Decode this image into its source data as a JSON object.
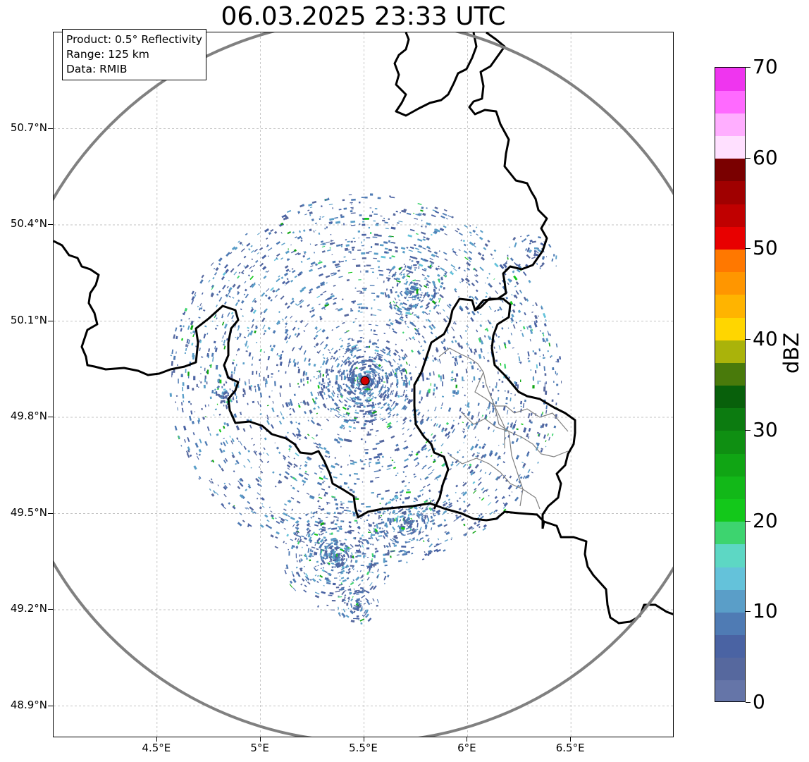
{
  "title": "06.03.2025 23:33 UTC",
  "info_box": {
    "product": "Product: 0.5° Reflectivity",
    "range": "Range: 125 km",
    "data": "Data: RMIB"
  },
  "map": {
    "lon_range": [
      4.0,
      7.0
    ],
    "lat_range": [
      48.8,
      51.0
    ],
    "x_ticks": [
      "4.5°E",
      "5°E",
      "5.5°E",
      "6°E",
      "6.5°E"
    ],
    "y_ticks": [
      "50.7°N",
      "50.4°N",
      "50.1°N",
      "49.8°N",
      "49.5°N",
      "49.2°N",
      "48.9°N"
    ],
    "radar_site": {
      "lon": 5.505,
      "lat": 49.914,
      "color": "#d10000"
    },
    "range_ring_km": 125,
    "range_ring_color": "#808080",
    "border_color": "#000000",
    "district_color": "#808080",
    "grid_color": "#b0b0b0"
  },
  "colorbar": {
    "label": "dBZ",
    "min": 0,
    "max": 70,
    "step": 2.5,
    "tick_labels": [
      "0",
      "10",
      "20",
      "30",
      "40",
      "50",
      "60",
      "70"
    ],
    "colors": [
      "#6575a8",
      "#56689e",
      "#4a63a3",
      "#4f7bb4",
      "#5a9ec8",
      "#64c2da",
      "#5dd7c4",
      "#3dd46f",
      "#13c81a",
      "#12b818",
      "#10a514",
      "#0f8f12",
      "#0c7b10",
      "#08600b",
      "#497a0b",
      "#aab30a",
      "#ffd600",
      "#ffb400",
      "#ff9600",
      "#ff7800",
      "#e80000",
      "#c00000",
      "#a00000",
      "#7a0000",
      "#ffe0ff",
      "#ffaeff",
      "#ff6aff",
      "#ef35ef"
    ]
  }
}
